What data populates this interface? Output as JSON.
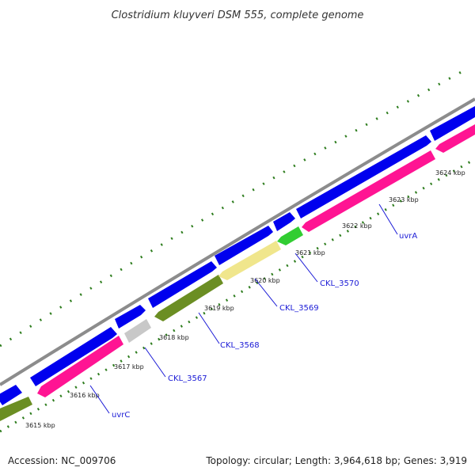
{
  "title": "Clostridium kluyveri DSM 555, complete genome",
  "footer": {
    "accession": "Accession: NC_009706",
    "summary": "Topology: circular; Length: 3,964,618 bp; Genes: 3,919"
  },
  "colors": {
    "backbone": "#8c8c8c",
    "forward_cds": "#0000ee",
    "reverse_cds_pink": "#ff1493",
    "reverse_cds_olive": "#6b8e23",
    "other_feature_grey": "#c8c8c8",
    "other_feature_pale": "#f0e68c",
    "other_feature_green": "#32cd32",
    "ticks": "#2e7d1e",
    "label_line": "#1a1ad6"
  },
  "scale": {
    "unit": "kbp",
    "labels": [
      "3615 kbp",
      "3616 kbp",
      "3617 kbp",
      "3618 kbp",
      "3619 kbp",
      "3620 kbp",
      "3621 kbp",
      "3622 kbp",
      "3623 kbp",
      "3624 kbp"
    ]
  },
  "genes": [
    {
      "name": "uvrC",
      "track": "reverse",
      "color": "reverse_cds_pink"
    },
    {
      "name": "CKL_3567",
      "track": "reverse",
      "color": "other_feature_grey"
    },
    {
      "name": "CKL_3568",
      "track": "reverse",
      "color": "reverse_cds_olive"
    },
    {
      "name": "CKL_3569",
      "track": "reverse",
      "color": "other_feature_pale"
    },
    {
      "name": "CKL_3570",
      "track": "reverse",
      "color": "other_feature_green"
    },
    {
      "name": "uvrA",
      "track": "reverse",
      "color": "reverse_cds_pink"
    }
  ]
}
